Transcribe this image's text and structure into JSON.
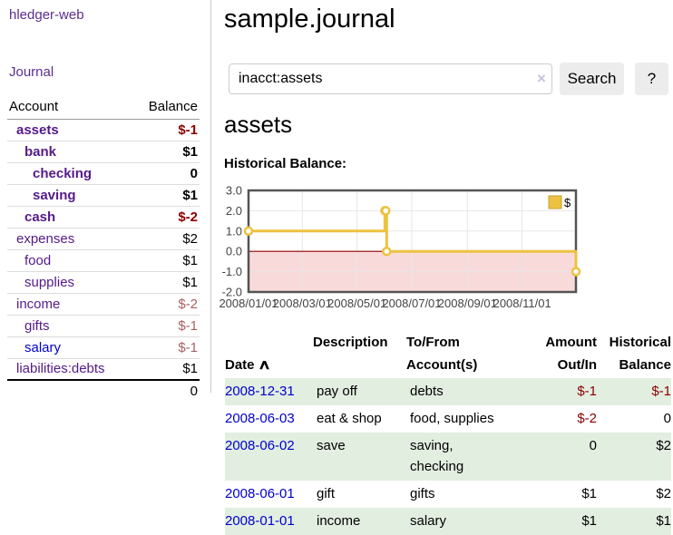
{
  "colors": {
    "accent_purple": "#551a8b",
    "link_blue": "#0000cc",
    "negative_strong": "#8b0000",
    "negative_soft": "#a86060",
    "row_green": "#e2eee0",
    "chart_line_yellow": "#edc240",
    "chart_negative_fill": "#f9dada",
    "chart_zero_line": "#8b0000"
  },
  "sidebar": {
    "app_title": "hledger-web",
    "journal_link": "Journal",
    "accounts_table": {
      "headers": {
        "account": "Account",
        "balance": "Balance"
      },
      "rows": [
        {
          "name": "assets",
          "indent": 0,
          "bold": true,
          "balance": "$-1",
          "neg": "strong"
        },
        {
          "name": "bank",
          "indent": 1,
          "bold": true,
          "balance": "$1",
          "neg": "none"
        },
        {
          "name": "checking",
          "indent": 2,
          "bold": true,
          "balance": "0",
          "neg": "none"
        },
        {
          "name": "saving",
          "indent": 2,
          "bold": true,
          "balance": "$1",
          "neg": "none"
        },
        {
          "name": "cash",
          "indent": 1,
          "bold": true,
          "balance": "$-2",
          "neg": "strong"
        },
        {
          "name": "expenses",
          "indent": 0,
          "bold": false,
          "balance": "$2",
          "neg": "none"
        },
        {
          "name": "food",
          "indent": 1,
          "bold": false,
          "balance": "$1",
          "neg": "none"
        },
        {
          "name": "supplies",
          "indent": 1,
          "bold": false,
          "balance": "$1",
          "neg": "none"
        },
        {
          "name": "income",
          "indent": 0,
          "bold": false,
          "balance": "$-2",
          "neg": "soft"
        },
        {
          "name": "gifts",
          "indent": 1,
          "bold": false,
          "balance": "$-1",
          "neg": "soft"
        },
        {
          "name": "salary",
          "indent": 1,
          "bold": false,
          "balance": "$-1",
          "neg": "soft",
          "link_style": "unvisited"
        },
        {
          "name": "liabilities:debts",
          "indent": 0,
          "bold": false,
          "balance": "$1",
          "neg": "none"
        }
      ],
      "total": "0"
    }
  },
  "main": {
    "page_title": "sample.journal",
    "search": {
      "value": "inacct:assets",
      "clear_icon": "×",
      "button_label": "Search",
      "help_label": "?"
    },
    "account_heading": "assets",
    "chart_label": "Historical Balance:",
    "register": {
      "headers": {
        "date": "Date",
        "sort_icon": "∧",
        "description": "Description",
        "account": "To/From\nAccount(s)",
        "amount": "Amount\nOut/In",
        "balance": "Historical\nBalance"
      },
      "rows": [
        {
          "date": "2008-12-31",
          "description": "pay off",
          "account": "debts",
          "amount": "$-1",
          "amount_neg": true,
          "balance": "$-1",
          "balance_neg": true
        },
        {
          "date": "2008-06-03",
          "description": "eat & shop",
          "account": "food, supplies",
          "amount": "$-2",
          "amount_neg": true,
          "balance": "0",
          "balance_neg": false
        },
        {
          "date": "2008-06-02",
          "description": "save",
          "account": "saving,\nchecking",
          "amount": "0",
          "amount_neg": false,
          "balance": "$2",
          "balance_neg": false
        },
        {
          "date": "2008-06-01",
          "description": "gift",
          "account": "gifts",
          "amount": "$1",
          "amount_neg": false,
          "balance": "$2",
          "balance_neg": false
        },
        {
          "date": "2008-01-01",
          "description": "income",
          "account": "salary",
          "amount": "$1",
          "amount_neg": false,
          "balance": "$1",
          "balance_neg": false
        }
      ]
    }
  },
  "chart_data": {
    "type": "line",
    "title": "Historical Balance",
    "style": "steps",
    "series": [
      {
        "name": "$",
        "color": "#edc240",
        "points": [
          [
            "2008-01-01",
            1
          ],
          [
            "2008-06-01",
            2
          ],
          [
            "2008-06-02",
            2
          ],
          [
            "2008-06-03",
            0
          ],
          [
            "2008-12-31",
            -1
          ]
        ]
      }
    ],
    "x_range": [
      "2008-01-01",
      "2008-12-31"
    ],
    "ylim": [
      -2,
      3
    ],
    "y_ticks": [
      "3.0",
      "2.0",
      "1.0",
      "0.0",
      "-1.0",
      "-2.0"
    ],
    "x_ticks": [
      "2008/01/01",
      "2008/03/01",
      "2008/05/01",
      "2008/07/01",
      "2008/09/01",
      "2008/11/01"
    ],
    "legend": {
      "label": "$",
      "position": "top-right"
    },
    "grid": true,
    "negative_region_color": "#f9dada",
    "zero_line_color": "#8b0000",
    "grid_color": "#e6e6e6",
    "border_color": "#545454"
  }
}
